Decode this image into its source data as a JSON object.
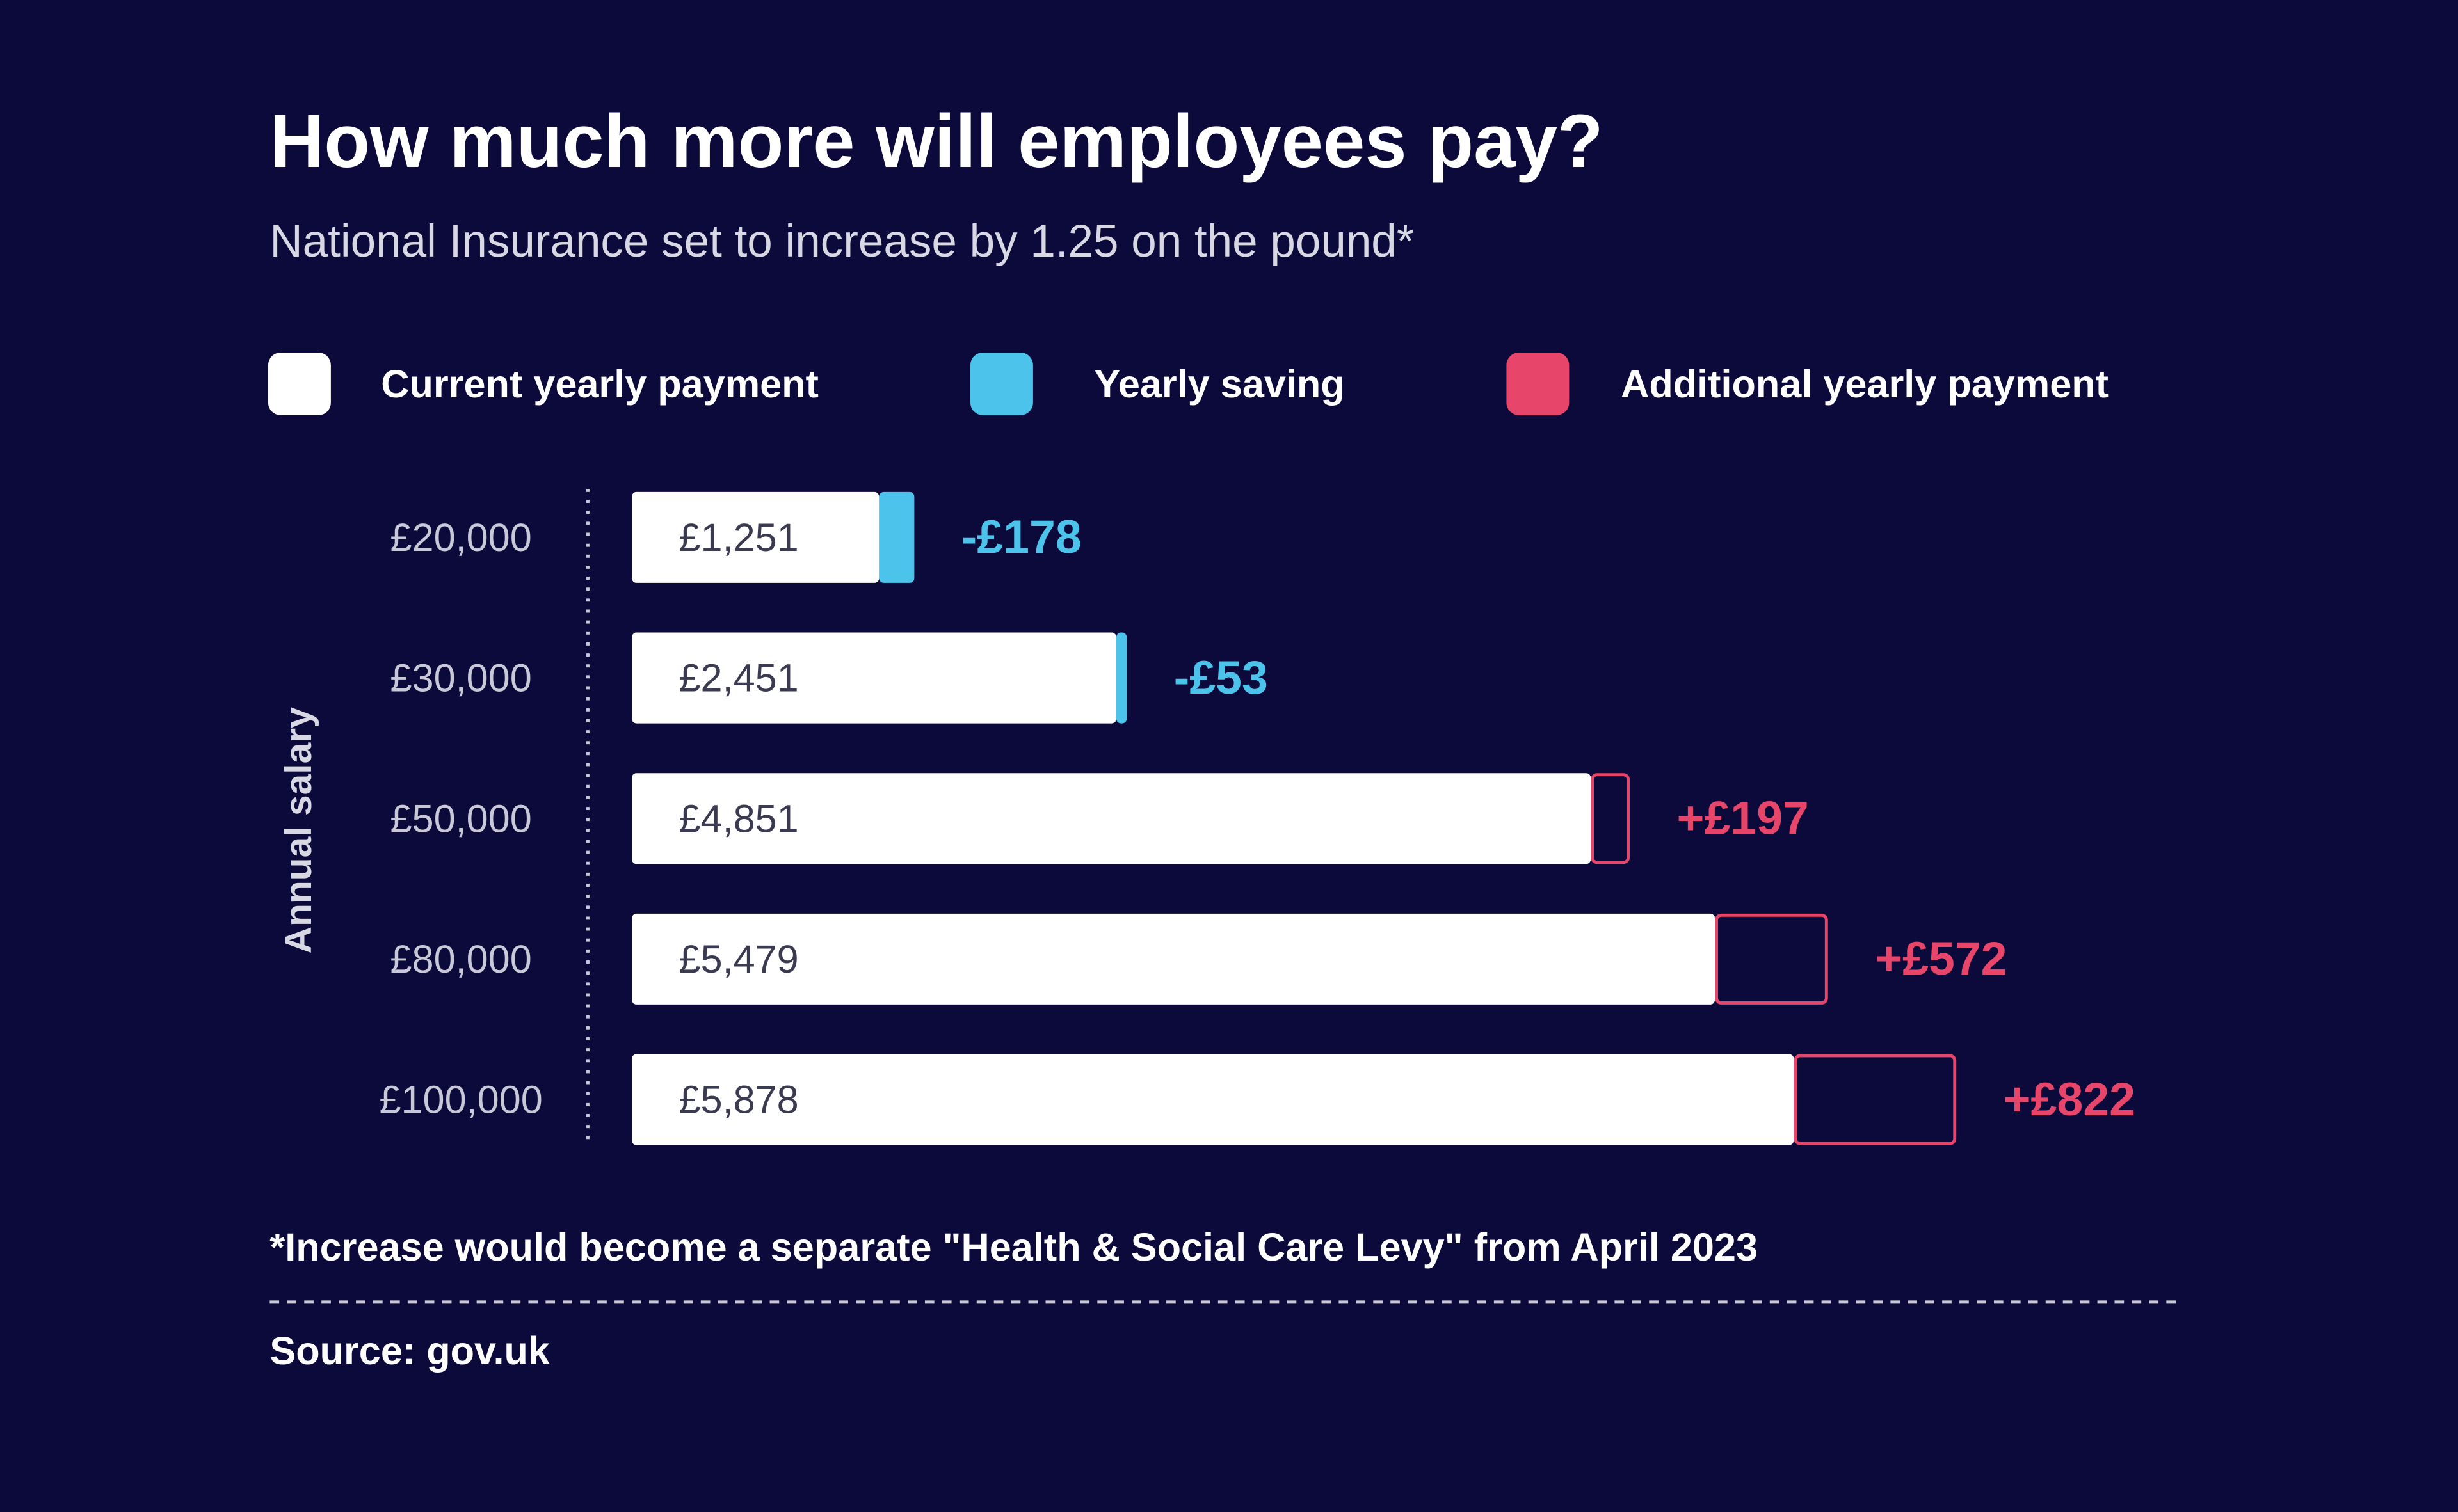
{
  "chart_data": {
    "type": "stacked-bar-horizontal",
    "title": "How much more will employees pay?",
    "subtitle": "National Insurance set to increase by 1.25 on the pound*",
    "y_axis_label": "Annual salary",
    "categories": [
      "£20,000",
      "£30,000",
      "£50,000",
      "£80,000",
      "£100,000"
    ],
    "series": [
      {
        "name": "Current yearly payment",
        "color": "#ffffff",
        "values": [
          1251,
          2451,
          4851,
          5479,
          5878
        ],
        "value_labels": [
          "£1,251",
          "£2,451",
          "£4,851",
          "£5,479",
          "£5,878"
        ]
      },
      {
        "name": "Yearly saving",
        "color": "#4cc3ea",
        "values": [
          -178,
          -53,
          null,
          null,
          null
        ],
        "value_labels": [
          "-£178",
          "-£53",
          null,
          null,
          null
        ]
      },
      {
        "name": "Additional yearly payment",
        "color": "#e8456b",
        "values": [
          null,
          null,
          197,
          572,
          822
        ],
        "value_labels": [
          null,
          null,
          "+£197",
          "+£572",
          "+£822"
        ]
      }
    ],
    "footnote": "*Increase would become a separate \"Health & Social Care Levy\" from April 2023",
    "source": "Source: gov.uk"
  }
}
